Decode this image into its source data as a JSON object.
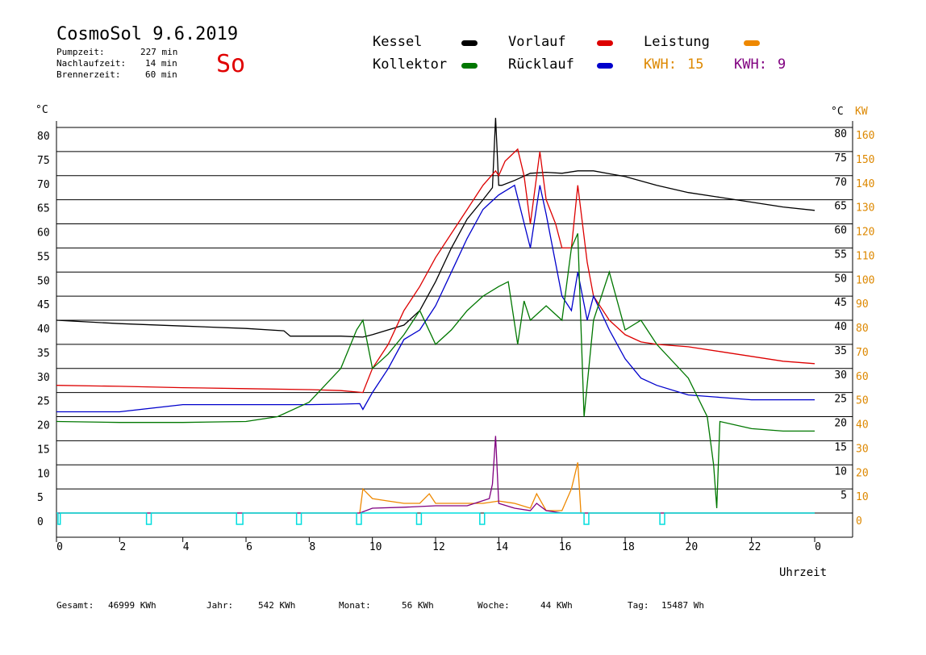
{
  "header": {
    "title": "CosmoSol 9.6.2019",
    "day": "So",
    "stats": [
      {
        "label": "Pumpzeit:",
        "value": "227 min"
      },
      {
        "label": "Nachlaufzeit:",
        "value": "14 min"
      },
      {
        "label": "Brennerzeit:",
        "value": "60 min"
      }
    ]
  },
  "legend": {
    "kessel": "Kessel",
    "vorlauf": "Vorlauf",
    "leistung": "Leistung",
    "kollektor": "Kollektor",
    "ruecklauf": "Rücklauf",
    "kwh1_label": "KWH:",
    "kwh1_value": "15",
    "kwh2_label": "KWH:",
    "kwh2_value": "9"
  },
  "colors": {
    "kessel": "#000000",
    "vorlauf": "#dd0000",
    "ruecklauf": "#0000cc",
    "kollektor": "#007700",
    "leistung": "#ee8800",
    "kwh2": "#800080",
    "pump": "#00dddd",
    "axis_kw": "#dd8800"
  },
  "footer": [
    {
      "label": "Gesamt:",
      "value": "46999 KWh"
    },
    {
      "label": "Jahr:",
      "value": "542 KWh"
    },
    {
      "label": "Monat:",
      "value": "56 KWh"
    },
    {
      "label": "Woche:",
      "value": "44 KWh"
    },
    {
      "label": "Tag:",
      "value": "15487 Wh"
    }
  ],
  "chart_data": {
    "type": "line",
    "xlabel": "Uhrzeit",
    "ylabel_left": "°C",
    "ylabel_right_c": "°C",
    "ylabel_right_kw": "KW",
    "xlim": [
      0,
      24
    ],
    "ylim": [
      0,
      80
    ],
    "ylim_kw": [
      0,
      160
    ],
    "x_ticks": [
      "0",
      "2",
      "4",
      "6",
      "8",
      "10",
      "12",
      "14",
      "16",
      "18",
      "20",
      "22",
      "0"
    ],
    "y_ticks": [
      "0",
      "5",
      "10",
      "15",
      "20",
      "25",
      "30",
      "35",
      "40",
      "45",
      "50",
      "55",
      "60",
      "65",
      "70",
      "75",
      "80"
    ],
    "y_ticks_right": [
      "5",
      "10",
      "15",
      "20",
      "25",
      "30",
      "35",
      "40",
      "45",
      "50",
      "55",
      "60",
      "65",
      "70",
      "75",
      "80"
    ],
    "kw_ticks": [
      "0",
      "10",
      "20",
      "30",
      "40",
      "50",
      "60",
      "70",
      "80",
      "90",
      "100",
      "110",
      "120",
      "130",
      "140",
      "150",
      "160"
    ],
    "grid": true,
    "series": [
      {
        "name": "Kessel",
        "x": [
          0,
          2,
          4,
          6,
          7.2,
          7.4,
          9,
          9.7,
          10,
          11,
          11.5,
          12,
          12.5,
          13,
          13.5,
          13.8,
          13.9,
          14,
          14.1,
          14.5,
          15,
          15.5,
          16,
          16.5,
          17,
          18,
          19,
          20,
          21,
          22,
          23,
          24
        ],
        "y": [
          40,
          39.3,
          38.8,
          38.3,
          37.8,
          36.7,
          36.7,
          36.5,
          37,
          39,
          42,
          48,
          55,
          61,
          65,
          67.5,
          82,
          68,
          68,
          69,
          70.5,
          70.7,
          70.5,
          71,
          71,
          69.8,
          68,
          66.5,
          65.5,
          64.5,
          63.5,
          62.8
        ]
      },
      {
        "name": "Vorlauf",
        "x": [
          0,
          2,
          4,
          6,
          8,
          9,
          9.7,
          10,
          10.5,
          11,
          11.5,
          12,
          12.5,
          13,
          13.5,
          13.9,
          14,
          14.2,
          14.6,
          14.8,
          15,
          15.3,
          15.5,
          15.8,
          16,
          16.3,
          16.5,
          16.8,
          17,
          17.5,
          18,
          18.5,
          19,
          20,
          21,
          22,
          23,
          24
        ],
        "y": [
          26.5,
          26.3,
          26,
          25.8,
          25.6,
          25.4,
          25,
          30,
          35,
          42,
          47,
          53,
          58,
          63,
          68,
          71,
          70,
          73,
          75.5,
          70,
          60,
          75,
          65,
          60,
          55,
          55,
          68,
          52,
          45,
          40,
          37,
          35.5,
          35,
          34.5,
          33.5,
          32.5,
          31.5,
          31
        ]
      },
      {
        "name": "Rücklauf",
        "x": [
          0,
          2,
          4,
          6,
          8,
          9,
          9.6,
          9.7,
          10,
          10.5,
          11,
          11.5,
          12,
          12.5,
          13,
          13.5,
          14,
          14.5,
          15,
          15.3,
          15.5,
          16,
          16.3,
          16.5,
          16.8,
          17,
          17.5,
          18,
          18.5,
          19,
          20,
          21,
          22,
          24
        ],
        "y": [
          21,
          21,
          22.5,
          22.5,
          22.5,
          22.6,
          22.7,
          21.5,
          25,
          30,
          36,
          38,
          43,
          50,
          57,
          63,
          66,
          68,
          55,
          68,
          62,
          45,
          42,
          50,
          40,
          45,
          38,
          32,
          28,
          26.5,
          24.5,
          24,
          23.5,
          23.5
        ]
      },
      {
        "name": "Kollektor",
        "x": [
          0,
          2,
          4,
          6,
          7,
          8,
          9,
          9.5,
          9.7,
          10,
          10.5,
          11,
          11.5,
          12,
          12.5,
          13,
          13.5,
          14,
          14.3,
          14.6,
          14.8,
          15,
          15.5,
          16,
          16.3,
          16.5,
          16.7,
          17,
          17.5,
          18,
          18.5,
          19,
          20,
          20.6,
          20.8,
          20.9,
          21,
          22,
          23,
          24
        ],
        "y": [
          19,
          18.8,
          18.8,
          19,
          20,
          23,
          30,
          38,
          40,
          30,
          33,
          37,
          42,
          35,
          38,
          42,
          45,
          47,
          48,
          35,
          44,
          40,
          43,
          40,
          55,
          58,
          20,
          40,
          50,
          38,
          40,
          35,
          28,
          20,
          10,
          1,
          19,
          17.5,
          17,
          17
        ]
      },
      {
        "name": "Leistung",
        "x": [
          0,
          9.6,
          9.7,
          10,
          10.5,
          11,
          11.5,
          11.8,
          12,
          13,
          13.5,
          14,
          14.5,
          15,
          15.2,
          15.5,
          16,
          16.3,
          16.5,
          16.6,
          17,
          24
        ],
        "y": [
          0,
          0,
          5,
          3,
          2.5,
          2,
          2,
          4,
          2,
          2,
          2,
          2.5,
          2,
          1,
          4,
          0.5,
          0.5,
          5,
          10.5,
          0,
          0,
          0
        ]
      },
      {
        "name": "KWH 2",
        "x": [
          0,
          9.6,
          10,
          11,
          12,
          13,
          13.7,
          13.8,
          13.9,
          14,
          14.5,
          15,
          15.2,
          15.5,
          16,
          24
        ],
        "y": [
          0,
          0,
          1,
          1.2,
          1.5,
          1.5,
          3,
          6,
          16,
          2,
          1,
          0.5,
          2,
          0.5,
          0,
          0
        ]
      }
    ],
    "pump_pulses": [
      {
        "x": 0.05,
        "w": 0.07
      },
      {
        "x": 2.85,
        "w": 0.15
      },
      {
        "x": 5.7,
        "w": 0.2
      },
      {
        "x": 7.6,
        "w": 0.15
      },
      {
        "x": 9.5,
        "w": 0.15
      },
      {
        "x": 11.4,
        "w": 0.15
      },
      {
        "x": 13.4,
        "w": 0.15
      },
      {
        "x": 16.7,
        "w": 0.15
      },
      {
        "x": 19.1,
        "w": 0.15
      }
    ]
  }
}
